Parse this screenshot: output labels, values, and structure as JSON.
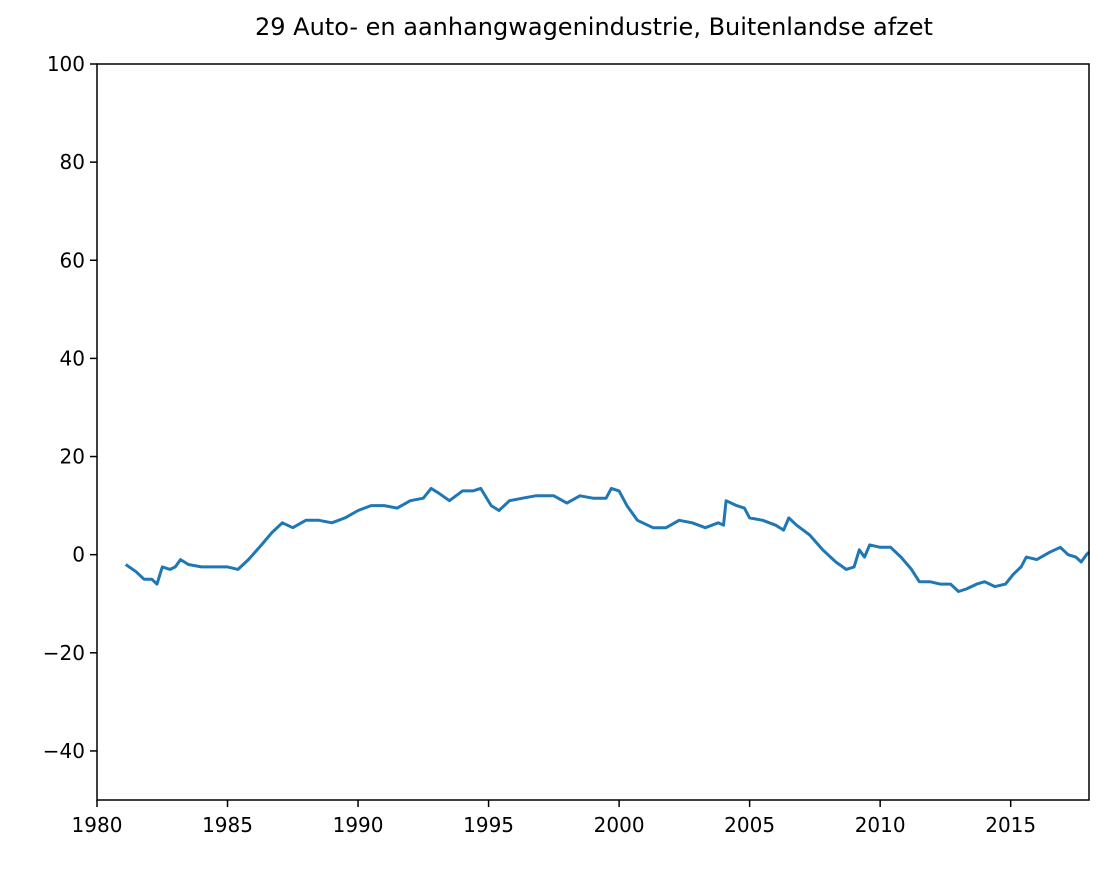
{
  "chart_data": {
    "type": "line",
    "title": "29 Auto- en aanhangwagenindustrie, Buitenlandse afzet",
    "color": "#1f77b4",
    "x": [
      1981.1,
      1981.5,
      1981.8,
      1982.1,
      1982.3,
      1982.5,
      1982.8,
      1983.0,
      1983.2,
      1983.5,
      1984.0,
      1984.5,
      1985.0,
      1985.4,
      1985.8,
      1986.3,
      1986.7,
      1987.1,
      1987.5,
      1988.0,
      1988.5,
      1989.0,
      1989.5,
      1990.0,
      1990.5,
      1991.0,
      1991.5,
      1992.0,
      1992.5,
      1992.8,
      1993.1,
      1993.5,
      1994.0,
      1994.4,
      1994.7,
      1995.1,
      1995.4,
      1995.8,
      1996.3,
      1996.8,
      1997.5,
      1998.0,
      1998.5,
      1999.0,
      1999.5,
      1999.7,
      2000.0,
      2000.3,
      2000.7,
      2001.3,
      2001.8,
      2002.3,
      2002.8,
      2003.3,
      2003.8,
      2004.0,
      2004.1,
      2004.5,
      2004.8,
      2005.0,
      2005.5,
      2006.0,
      2006.3,
      2006.5,
      2006.8,
      2007.3,
      2007.8,
      2008.3,
      2008.7,
      2009.0,
      2009.2,
      2009.4,
      2009.6,
      2010.0,
      2010.4,
      2010.8,
      2011.2,
      2011.5,
      2011.9,
      2012.3,
      2012.7,
      2013.0,
      2013.3,
      2013.7,
      2014.0,
      2014.4,
      2014.8,
      2015.1,
      2015.4,
      2015.6,
      2016.0,
      2016.5,
      2016.9,
      2017.2,
      2017.5,
      2017.7,
      2017.9,
      2018.0
    ],
    "values": [
      -2,
      -3.5,
      -5,
      -5,
      -6,
      -2.5,
      -3,
      -2.5,
      -1,
      -2,
      -2.5,
      -2.5,
      -2.5,
      -3,
      -1,
      2,
      4.5,
      6.5,
      5.5,
      7,
      7,
      6.5,
      7.5,
      9,
      10,
      10,
      9.5,
      11,
      11.5,
      13.5,
      12.5,
      11,
      13,
      13,
      13.5,
      10,
      9,
      11,
      11.5,
      12,
      12,
      10.5,
      12,
      11.5,
      11.5,
      13.5,
      13,
      10,
      7,
      5.5,
      5.5,
      7,
      6.5,
      5.5,
      6.5,
      6,
      11,
      10,
      9.5,
      7.5,
      7,
      6,
      5,
      7.5,
      6,
      4,
      1,
      -1.5,
      -3,
      -2.5,
      1,
      -0.5,
      2,
      1.5,
      1.5,
      -0.5,
      -3,
      -5.5,
      -5.5,
      -6,
      -6,
      -7.5,
      -7,
      -6,
      -5.5,
      -6.5,
      -6,
      -4,
      -2.5,
      -0.5,
      -1,
      0.5,
      1.5,
      0,
      -0.5,
      -1.5,
      0,
      0.5
    ],
    "xlim": [
      1980,
      2018
    ],
    "xticks": [
      1980,
      1985,
      1990,
      1995,
      2000,
      2005,
      2010,
      2015
    ],
    "ylim": [
      -50,
      100
    ],
    "yticks": [
      {
        "value": -40,
        "label": "−40"
      },
      {
        "value": -20,
        "label": "−20"
      },
      0,
      20,
      40,
      60,
      80,
      100
    ]
  }
}
